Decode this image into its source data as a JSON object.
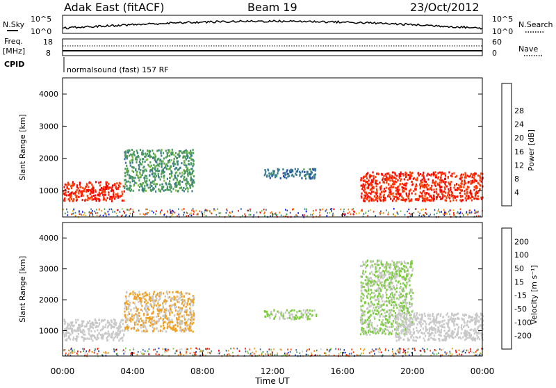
{
  "header": {
    "station": "Adak East (fitACF)",
    "beam": "Beam 19",
    "date": "23/Oct/2012"
  },
  "noise_panel": {
    "left_label": "N.Sky",
    "right_label": "N.Search",
    "ytick_top": "10^5",
    "ytick_bottom": "10^0"
  },
  "freq_panel": {
    "label_line1": "Freq.",
    "label_line2": "[MHz]",
    "left_ticks": [
      "18",
      "8"
    ],
    "right_ticks": [
      "60",
      "0"
    ],
    "right_label": "Nave"
  },
  "cpid": {
    "label": "CPID",
    "text": "normalsound (fast) 157 RF"
  },
  "time_axis": {
    "ticks": [
      "00:00",
      "04:00",
      "08:00",
      "12:00",
      "16:00",
      "20:00",
      "00:00"
    ],
    "label": "Time UT"
  },
  "range_axis": {
    "label": "Slant Range [km]",
    "ticks": [
      "1000",
      "2000",
      "3000",
      "4000"
    ]
  },
  "power_scale": {
    "label": "Power [dB]",
    "ticks": [
      "4",
      "8",
      "12",
      "16",
      "20",
      "24",
      "28"
    ],
    "colors": [
      "#0000ff",
      "#1d4fa8",
      "#3a7a8f",
      "#4b9b5a",
      "#7dbf3a",
      "#f6b000",
      "#ff7a00",
      "#ff3a00",
      "#ff0000"
    ]
  },
  "velocity_scale": {
    "label": "Velocity [m s⁻¹]",
    "ticks": [
      "200",
      "100",
      "50",
      "15",
      "-15",
      "-50",
      "-100",
      "-200"
    ],
    "colors": [
      "#1a2aa8",
      "#2f64a0",
      "#3d8a5a",
      "#7ccd3c",
      "#c8c8c8",
      "#f0a020",
      "#ff7a00",
      "#ff3a00",
      "#ff0000"
    ]
  },
  "chart_data": [
    {
      "type": "heatmap",
      "title": "Power",
      "xlabel": "Time UT",
      "ylabel": "Slant Range [km]",
      "xlim": [
        0,
        24
      ],
      "ylim": [
        180,
        4500
      ],
      "colorbar_label": "Power [dB]",
      "colorbar_range": [
        0,
        32
      ],
      "features": [
        {
          "time": [
            0,
            3.5
          ],
          "range": [
            700,
            1300
          ],
          "value_db": 28
        },
        {
          "time": [
            3.5,
            7.5
          ],
          "range": [
            1000,
            2300
          ],
          "value_db": 12
        },
        {
          "time": [
            11.5,
            14.5
          ],
          "range": [
            1400,
            1700
          ],
          "value_db": 8
        },
        {
          "time": [
            17,
            24
          ],
          "range": [
            700,
            1600
          ],
          "value_db": 28
        }
      ]
    },
    {
      "type": "heatmap",
      "title": "Velocity",
      "xlabel": "Time UT",
      "ylabel": "Slant Range [km]",
      "xlim": [
        0,
        24
      ],
      "ylim": [
        180,
        4500
      ],
      "colorbar_label": "Velocity [m s⁻¹]",
      "colorbar_range": [
        -250,
        250
      ],
      "features": [
        {
          "time": [
            0,
            3.5
          ],
          "range": [
            700,
            1400
          ],
          "value_ms": 0
        },
        {
          "time": [
            3.5,
            7.5
          ],
          "range": [
            1000,
            2300
          ],
          "value_ms": -30
        },
        {
          "time": [
            11.5,
            14.5
          ],
          "range": [
            1400,
            1700
          ],
          "value_ms": 30
        },
        {
          "time": [
            17,
            20
          ],
          "range": [
            900,
            3300
          ],
          "value_ms": 30
        },
        {
          "time": [
            19,
            24
          ],
          "range": [
            700,
            1600
          ],
          "value_ms": 0
        }
      ]
    }
  ]
}
